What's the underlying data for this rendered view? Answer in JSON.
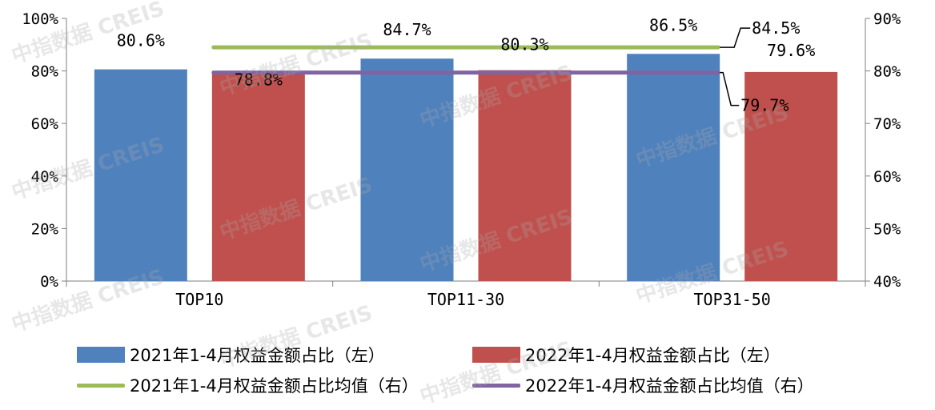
{
  "watermark": "中指数据 CREIS",
  "colors": {
    "series_2021_bar": "#4f81bd",
    "series_2022_bar": "#c0504d",
    "series_2021_avg": "#9bbb59",
    "series_2022_avg": "#8064a2",
    "axis": "#7f7f7f"
  },
  "chart_data": {
    "type": "bar",
    "categories": [
      "TOP10",
      "TOP11-30",
      "TOP31-50"
    ],
    "series": [
      {
        "name": "2021年1-4月权益金额占比（左）",
        "axis": "left",
        "values": [
          80.6,
          84.7,
          86.5
        ],
        "labels": [
          "80.6%",
          "84.7%",
          "86.5%"
        ]
      },
      {
        "name": "2022年1-4月权益金额占比（左）",
        "axis": "left",
        "values": [
          78.8,
          80.3,
          79.6
        ],
        "labels": [
          "78.8%",
          "80.3%",
          "79.6%"
        ]
      }
    ],
    "lines": [
      {
        "name": "2021年1-4月权益金额占比均值（右）",
        "axis": "right",
        "value": 84.5,
        "label": "84.5%"
      },
      {
        "name": "2022年1-4月权益金额占比均值（右）",
        "axis": "right",
        "value": 79.7,
        "label": "79.7%"
      }
    ],
    "y_left": {
      "min": 0,
      "max": 100,
      "ticks": [
        "0%",
        "20%",
        "40%",
        "60%",
        "80%",
        "100%"
      ]
    },
    "y_right": {
      "min": 40,
      "max": 90,
      "ticks": [
        "40%",
        "50%",
        "60%",
        "70%",
        "80%",
        "90%"
      ]
    },
    "legend_position": "bottom",
    "grid": false
  }
}
